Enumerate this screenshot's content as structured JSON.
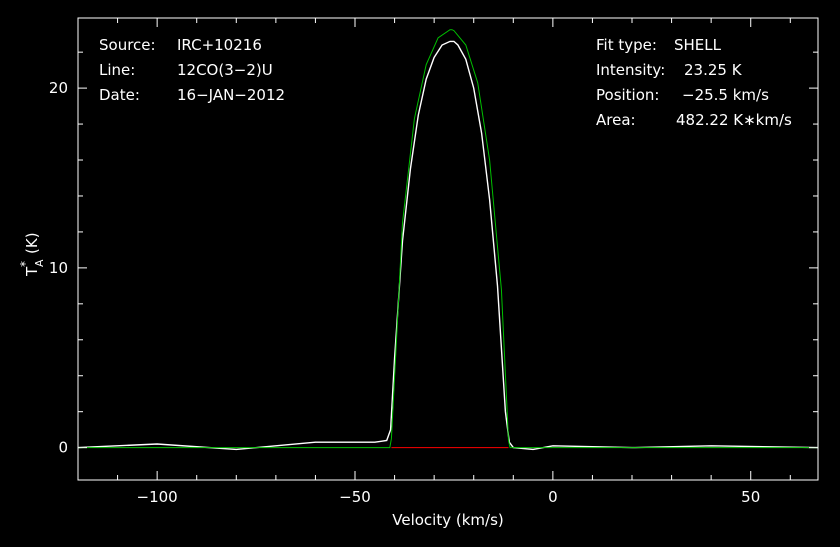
{
  "chart_data": {
    "type": "line",
    "title": "",
    "xlabel": "Velocity (km/s)",
    "ylabel": {
      "main": "T",
      "sup": "*",
      "sub": "A",
      "unit": "(K)"
    },
    "xlim": [
      -120,
      67
    ],
    "ylim": [
      -1.8,
      23.9
    ],
    "x_ticks": [
      -100,
      -50,
      0,
      50
    ],
    "x_tick_labels": [
      "−100",
      "−50",
      "0",
      "50"
    ],
    "y_ticks": [
      0,
      10,
      20
    ],
    "y_tick_labels": [
      "0",
      "10",
      "20"
    ],
    "grid": false,
    "legend": "none",
    "info_left": [
      {
        "key": "Source:",
        "value": "IRC+10216"
      },
      {
        "key": "Line:",
        "value": "12CO(3−2)U"
      },
      {
        "key": "Date:",
        "value": "16−JAN−2012"
      }
    ],
    "info_right": [
      {
        "key": "Fit type:",
        "value": "SHELL"
      },
      {
        "key": "Intensity:",
        "value": "23.25 K"
      },
      {
        "key": "Position:",
        "value": "−25.5 km/s"
      },
      {
        "key": "Area:",
        "value": "482.22 K∗km/s"
      }
    ],
    "fit": {
      "type": "SHELL",
      "peak": 23.25,
      "center": -25.5,
      "v_min": -40.8,
      "v_max": -11.2,
      "area": 482.22
    },
    "series": [
      {
        "style": "spectrum",
        "color": "#ffffff",
        "x": [
          -120,
          -100,
          -80,
          -60,
          -45,
          -42,
          -41,
          -40,
          -38,
          -36,
          -34,
          -32,
          -30,
          -28,
          -26,
          -25,
          -24,
          -22,
          -20,
          -18,
          -16,
          -14,
          -12,
          -11,
          -10,
          -5,
          0,
          20,
          40,
          67
        ],
        "y": [
          0,
          0.2,
          -0.1,
          0.3,
          0.3,
          0.4,
          1.0,
          5.0,
          11.5,
          15.5,
          18.5,
          20.5,
          21.7,
          22.4,
          22.6,
          22.6,
          22.4,
          21.6,
          20.0,
          17.5,
          13.8,
          9.0,
          2.0,
          0.3,
          0,
          -0.1,
          0.1,
          0,
          0.1,
          0
        ]
      },
      {
        "style": "fit",
        "color": "#00c000",
        "x": [
          -120,
          -41.2,
          -40.8,
          -38,
          -35,
          -32,
          -29,
          -26,
          -25.5,
          -25,
          -22,
          -19,
          -16,
          -13,
          -11.2,
          -10.8,
          67
        ],
        "y": [
          0,
          0,
          0.5,
          12.5,
          18.3,
          21.3,
          22.8,
          23.25,
          23.25,
          23.2,
          22.4,
          20.3,
          16.0,
          8.8,
          0.4,
          0,
          0
        ]
      },
      {
        "style": "baseline",
        "color": "#ff0000",
        "x": [
          -40.8,
          -11.2
        ],
        "y": [
          0,
          0
        ]
      }
    ]
  }
}
